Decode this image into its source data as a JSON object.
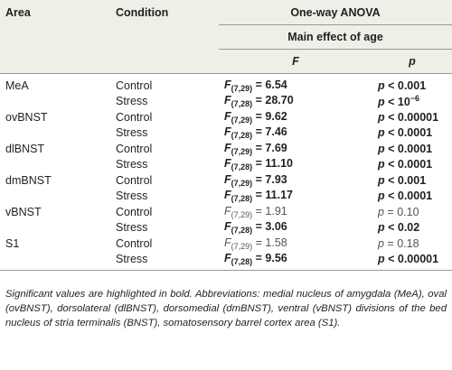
{
  "header": {
    "area": "Area",
    "condition": "Condition",
    "anova": "One-way ANOVA",
    "main_effect": "Main effect of age",
    "f": "F",
    "p": "p"
  },
  "groups": [
    {
      "area": "MeA",
      "rows": [
        {
          "condition": "Control",
          "bold": true,
          "f": {
            "symbol": "F",
            "df": "(7,29)",
            "value": " = 6.54"
          },
          "p": {
            "symbol": "p",
            "value": " < 0.001"
          }
        },
        {
          "condition": "Stress",
          "bold": true,
          "f": {
            "symbol": "F",
            "df": "(7,28)",
            "value": " = 28.70"
          },
          "p": {
            "symbol": "p",
            "value": " < 10",
            "exp": "−6"
          }
        }
      ]
    },
    {
      "area": "ovBNST",
      "rows": [
        {
          "condition": "Control",
          "bold": true,
          "f": {
            "symbol": "F",
            "df": "(7,29)",
            "value": " = 9.62"
          },
          "p": {
            "symbol": "p",
            "value": " < 0.00001"
          }
        },
        {
          "condition": "Stress",
          "bold": true,
          "f": {
            "symbol": "F",
            "df": "(7,28)",
            "value": " = 7.46"
          },
          "p": {
            "symbol": "p",
            "value": " < 0.0001"
          }
        }
      ]
    },
    {
      "area": "dlBNST",
      "rows": [
        {
          "condition": "Control",
          "bold": true,
          "f": {
            "symbol": "F",
            "df": "(7,29)",
            "value": " = 7.69"
          },
          "p": {
            "symbol": "p",
            "value": " < 0.0001"
          }
        },
        {
          "condition": "Stress",
          "bold": true,
          "f": {
            "symbol": "F",
            "df": "(7,28)",
            "value": " = 11.10"
          },
          "p": {
            "symbol": "p",
            "value": " < 0.0001"
          }
        }
      ]
    },
    {
      "area": "dmBNST",
      "rows": [
        {
          "condition": "Control",
          "bold": true,
          "f": {
            "symbol": "F",
            "df": "(7,29)",
            "value": " = 7.93"
          },
          "p": {
            "symbol": "p",
            "value": " < 0.001"
          }
        },
        {
          "condition": "Stress",
          "bold": true,
          "f": {
            "symbol": "F",
            "df": "(7,28)",
            "value": " = 11.17"
          },
          "p": {
            "symbol": "p",
            "value": " < 0.0001"
          }
        }
      ]
    },
    {
      "area": "vBNST",
      "rows": [
        {
          "condition": "Control",
          "bold": false,
          "f": {
            "symbol": "F",
            "df": "(7,29)",
            "value": " = 1.91"
          },
          "p": {
            "symbol": "p",
            "value": " = 0.10"
          }
        },
        {
          "condition": "Stress",
          "bold": true,
          "f": {
            "symbol": "F",
            "df": "(7,28)",
            "value": " = 3.06"
          },
          "p": {
            "symbol": "p",
            "value": " < 0.02"
          }
        }
      ]
    },
    {
      "area": "S1",
      "rows": [
        {
          "condition": "Control",
          "bold": false,
          "f": {
            "symbol": "F",
            "df": "(7,29)",
            "value": " = 1.58"
          },
          "p": {
            "symbol": "p",
            "value": " = 0.18"
          }
        },
        {
          "condition": "Stress",
          "bold": true,
          "f": {
            "symbol": "F",
            "df": "(7,28)",
            "value": " = 9.56"
          },
          "p": {
            "symbol": "p",
            "value": " < 0.00001"
          }
        }
      ]
    }
  ],
  "caption": "Significant values are highlighted in bold. Abbreviations: medial nucleus of amygdala (MeA), oval (ovBNST), dorsolateral (dlBNST), dorsomedial (dmBNST), ventral (vBNST) divisions of the bed nucleus of stria terminalis (BNST), somatosensory barrel cortex area (S1)."
}
